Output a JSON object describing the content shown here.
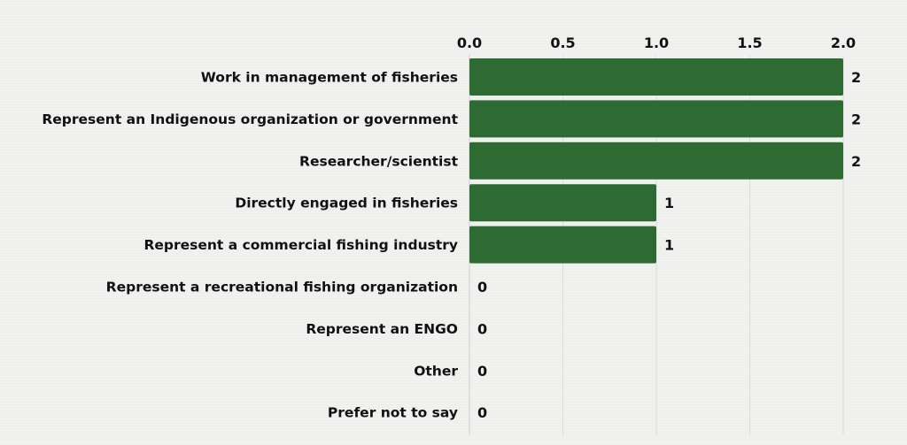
{
  "chart_data": {
    "type": "bar",
    "orientation": "horizontal",
    "categories": [
      "Work in management of fisheries",
      "Represent an Indigenous organization or government",
      "Researcher/scientist",
      "Directly engaged in fisheries",
      "Represent a commercial fishing industry",
      "Represent a recreational fishing organization",
      "Represent an ENGO",
      "Other",
      "Prefer not to say"
    ],
    "values": [
      2,
      2,
      2,
      1,
      1,
      0,
      0,
      0,
      0
    ],
    "data_labels": [
      "2",
      "2",
      "2",
      "1",
      "1",
      "0",
      "0",
      "0",
      "0"
    ],
    "x_ticks": [
      "0.0",
      "0.5",
      "1.0",
      "1.5",
      "2.0"
    ],
    "xlim": [
      0,
      2
    ],
    "x_axis_position": "top",
    "grid": true,
    "title": "",
    "xlabel": "",
    "ylabel": "",
    "colors": {
      "bar": "#2e6b33",
      "grid": "#dcdcdc",
      "text": "#111111",
      "background": "#f1f1f0"
    }
  }
}
